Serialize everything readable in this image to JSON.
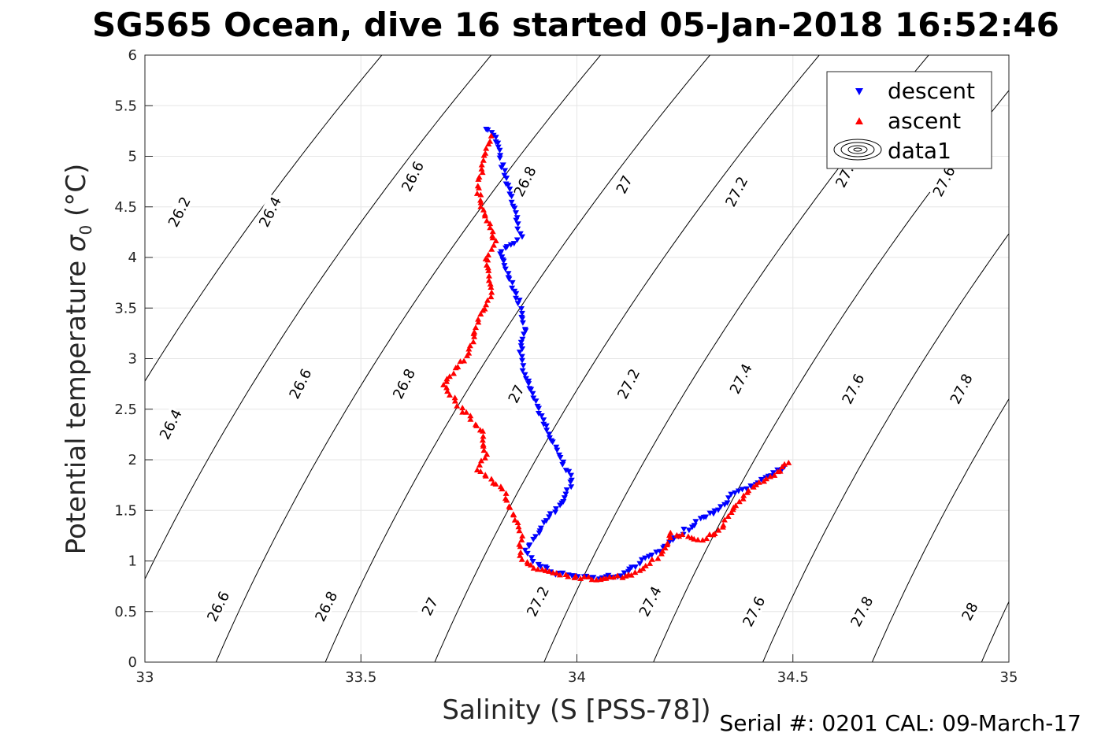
{
  "chart_data": {
    "type": "scatter",
    "title": "SG565 Ocean, dive 16 started 05-Jan-2018 16:52:46",
    "xlabel": "Salinity (S [PSS-78])",
    "ylabel_main": "Potential temperature ",
    "ylabel_symbol": "σ",
    "ylabel_sub": "0",
    "ylabel_unit": " (°C)",
    "xlim": [
      33,
      35
    ],
    "ylim": [
      0,
      6
    ],
    "xticks": [
      "33",
      "33.5",
      "34",
      "34.5",
      "35"
    ],
    "yticks": [
      "0",
      "0.5",
      "1",
      "1.5",
      "2",
      "2.5",
      "3",
      "3.5",
      "4",
      "4.5",
      "5",
      "5.5",
      "6"
    ],
    "grid": true,
    "legend_position": "top-right",
    "legend": [
      {
        "label": "descent",
        "marker": "triangle-down",
        "color": "#0000ff"
      },
      {
        "label": "ascent",
        "marker": "triangle-up",
        "color": "#ff0000"
      },
      {
        "label": "data1",
        "marker": "contour"
      }
    ],
    "density_contours": {
      "color": "#000000",
      "levels": [
        "26.2",
        "26.4",
        "26.6",
        "26.8",
        "27",
        "27.2",
        "27.4",
        "27.6",
        "27.8",
        "28"
      ],
      "label_positions": [
        {
          "label": "26.2",
          "s": 33.08,
          "t": 4.45
        },
        {
          "label": "26.4",
          "s": 33.29,
          "t": 4.45
        },
        {
          "label": "26.6",
          "s": 33.62,
          "t": 4.8
        },
        {
          "label": "26.8",
          "s": 33.88,
          "t": 4.75
        },
        {
          "label": "27",
          "s": 34.11,
          "t": 4.72
        },
        {
          "label": "27.2",
          "s": 34.37,
          "t": 4.65
        },
        {
          "label": "27.",
          "s": 34.62,
          "t": 4.8
        },
        {
          "label": "27.6",
          "s": 34.85,
          "t": 4.75
        },
        {
          "label": "26.4",
          "s": 33.06,
          "t": 2.35
        },
        {
          "label": "26.6",
          "s": 33.36,
          "t": 2.75
        },
        {
          "label": "26.8",
          "s": 33.6,
          "t": 2.75
        },
        {
          "label": "27",
          "s": 33.86,
          "t": 2.65
        },
        {
          "label": "27.2",
          "s": 34.12,
          "t": 2.75
        },
        {
          "label": "27.4",
          "s": 34.38,
          "t": 2.8
        },
        {
          "label": "27.6",
          "s": 34.64,
          "t": 2.7
        },
        {
          "label": "27.8",
          "s": 34.89,
          "t": 2.7
        },
        {
          "label": "26.6",
          "s": 33.17,
          "t": 0.55
        },
        {
          "label": "26.8",
          "s": 33.42,
          "t": 0.55
        },
        {
          "label": "27",
          "s": 33.66,
          "t": 0.55
        },
        {
          "label": "27.2",
          "s": 33.91,
          "t": 0.6
        },
        {
          "label": "27.4",
          "s": 34.17,
          "t": 0.6
        },
        {
          "label": "27.6",
          "s": 34.41,
          "t": 0.5
        },
        {
          "label": "27.8",
          "s": 34.66,
          "t": 0.5
        },
        {
          "label": "28",
          "s": 34.91,
          "t": 0.5
        }
      ]
    },
    "series": [
      {
        "name": "descent",
        "marker": "triangle-down",
        "color": "#0000ff",
        "path": [
          [
            33.79,
            5.27
          ],
          [
            33.81,
            5.22
          ],
          [
            33.82,
            5.05
          ],
          [
            33.83,
            4.85
          ],
          [
            33.85,
            4.6
          ],
          [
            33.86,
            4.4
          ],
          [
            33.87,
            4.2
          ],
          [
            33.84,
            4.1
          ],
          [
            33.82,
            4.05
          ],
          [
            33.83,
            3.95
          ],
          [
            33.85,
            3.75
          ],
          [
            33.87,
            3.5
          ],
          [
            33.88,
            3.3
          ],
          [
            33.87,
            3.05
          ],
          [
            33.88,
            2.85
          ],
          [
            33.9,
            2.65
          ],
          [
            33.92,
            2.4
          ],
          [
            33.94,
            2.2
          ],
          [
            33.97,
            1.95
          ],
          [
            33.99,
            1.8
          ],
          [
            33.97,
            1.6
          ],
          [
            33.93,
            1.4
          ],
          [
            33.9,
            1.2
          ],
          [
            33.88,
            1.1
          ],
          [
            33.9,
            1.0
          ],
          [
            33.95,
            0.88
          ],
          [
            34.05,
            0.83
          ],
          [
            34.11,
            0.87
          ],
          [
            34.15,
            1.0
          ],
          [
            34.2,
            1.12
          ],
          [
            34.25,
            1.3
          ],
          [
            34.3,
            1.45
          ],
          [
            34.33,
            1.5
          ],
          [
            34.36,
            1.65
          ],
          [
            34.42,
            1.78
          ],
          [
            34.48,
            1.93
          ]
        ]
      },
      {
        "name": "ascent",
        "marker": "triangle-up",
        "color": "#ff0000",
        "path": [
          [
            33.8,
            5.2
          ],
          [
            33.79,
            5.08
          ],
          [
            33.78,
            4.88
          ],
          [
            33.77,
            4.68
          ],
          [
            33.78,
            4.5
          ],
          [
            33.8,
            4.3
          ],
          [
            33.81,
            4.15
          ],
          [
            33.79,
            4.0
          ],
          [
            33.8,
            3.82
          ],
          [
            33.8,
            3.65
          ],
          [
            33.79,
            3.5
          ],
          [
            33.77,
            3.35
          ],
          [
            33.76,
            3.2
          ],
          [
            33.75,
            3.05
          ],
          [
            33.72,
            2.9
          ],
          [
            33.69,
            2.73
          ],
          [
            33.78,
            2.27
          ],
          [
            33.79,
            2.05
          ],
          [
            33.77,
            1.9
          ],
          [
            33.83,
            1.7
          ],
          [
            33.84,
            1.55
          ],
          [
            33.86,
            1.4
          ],
          [
            33.87,
            1.25
          ],
          [
            33.87,
            1.05
          ],
          [
            33.9,
            0.92
          ],
          [
            34.0,
            0.84
          ],
          [
            34.06,
            0.82
          ],
          [
            34.12,
            0.85
          ],
          [
            34.17,
            0.98
          ],
          [
            34.2,
            1.08
          ],
          [
            34.22,
            1.28
          ],
          [
            34.28,
            1.2
          ],
          [
            34.33,
            1.3
          ],
          [
            34.36,
            1.5
          ],
          [
            34.4,
            1.7
          ],
          [
            34.47,
            1.9
          ],
          [
            34.49,
            1.97
          ]
        ]
      }
    ]
  },
  "footer": "Serial #: 0201  CAL: 09-March-17"
}
